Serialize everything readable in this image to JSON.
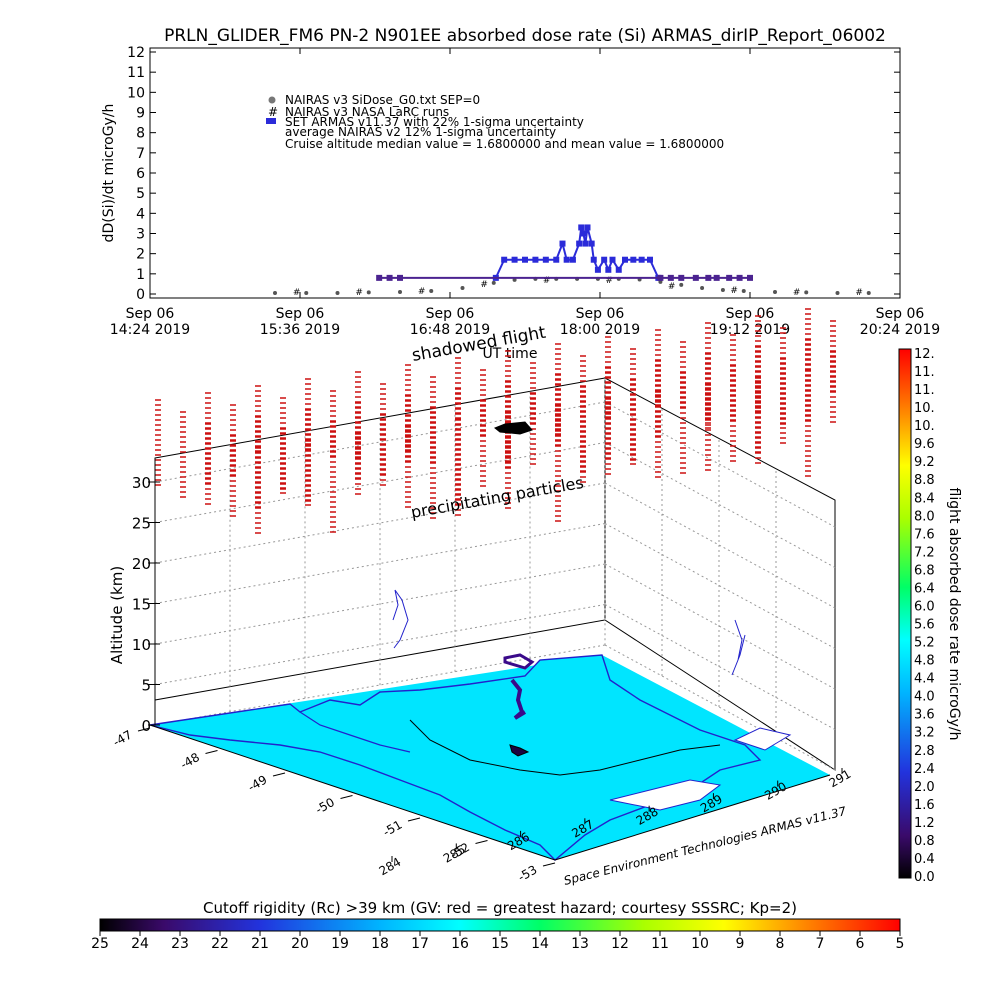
{
  "chart_data": [
    {
      "type": "scatter",
      "title": "PRLN_GLIDER_FM6 PN-2 N901EE absorbed dose rate (Si) ARMAS_dirIP_Report_06002",
      "ylabel": "dD(Si)/dt microGy/h",
      "xlabel": "UT time",
      "ylim": [
        0,
        12
      ],
      "yticks": [
        "0",
        "1",
        "2",
        "3",
        "4",
        "5",
        "6",
        "7",
        "8",
        "9",
        "10",
        "11",
        "12"
      ],
      "xticks": [
        {
          "t": 0,
          "line1": "Sep 06",
          "line2": "14:24 2019"
        },
        {
          "t": 72,
          "line1": "Sep 06",
          "line2": "15:36 2019"
        },
        {
          "t": 144,
          "line1": "Sep 06",
          "line2": "16:48 2019"
        },
        {
          "t": 216,
          "line1": "Sep 06",
          "line2": "18:00 2019"
        },
        {
          "t": 288,
          "line1": "Sep 06",
          "line2": "19:12 2019"
        },
        {
          "t": 360,
          "line1": "Sep 06",
          "line2": "20:24 2019"
        }
      ],
      "legend": {
        "placement": "top-left",
        "entries": [
          "NAIRAS v3 SiDose_G0.txt SEP=0",
          "NAIRAS v3 NASA LaRC runs",
          "SET ARMAS v11.37 with 22% 1-sigma uncertainty",
          "average NAIRAS v2 12% 1-sigma uncertainty",
          "Cruise altitude median value = 1.6800000 and mean value = 1.6800000"
        ]
      },
      "series": [
        {
          "name": "NAIRAS v3 SiDose_G0.txt SEP=0",
          "color": "#555555",
          "x": [
            60,
            75,
            90,
            105,
            120,
            135,
            150,
            165,
            175,
            185,
            195,
            205,
            215,
            225,
            235,
            245,
            255,
            265,
            275,
            285,
            300,
            315,
            330,
            345
          ],
          "y": [
            0.05,
            0.05,
            0.05,
            0.08,
            0.1,
            0.15,
            0.3,
            0.55,
            0.7,
            0.75,
            0.75,
            0.75,
            0.75,
            0.75,
            0.72,
            0.6,
            0.45,
            0.3,
            0.2,
            0.15,
            0.1,
            0.08,
            0.05,
            0.05
          ]
        },
        {
          "name": "NAIRAS v3 NASA LaRC runs",
          "color": "#000000",
          "x": [
            70,
            100,
            130,
            160,
            190,
            220,
            250,
            280,
            310,
            340
          ],
          "y": [
            0.1,
            0.1,
            0.15,
            0.5,
            0.7,
            0.7,
            0.4,
            0.2,
            0.1,
            0.1
          ]
        },
        {
          "name": "SET ARMAS v11.37 with 22% 1-sigma uncertainty",
          "color": "#2b2bd9",
          "x": [
            166,
            170,
            175,
            180,
            185,
            190,
            195,
            198,
            200,
            203,
            206,
            207,
            208,
            209,
            210,
            212,
            213,
            215,
            218,
            220,
            222,
            225,
            228,
            232,
            236,
            240,
            244
          ],
          "y": [
            0.8,
            1.7,
            1.7,
            1.7,
            1.7,
            1.7,
            1.7,
            2.5,
            1.7,
            1.7,
            2.5,
            3.3,
            3.0,
            2.5,
            3.3,
            2.5,
            1.7,
            1.2,
            1.7,
            1.2,
            1.7,
            1.2,
            1.7,
            1.7,
            1.7,
            1.7,
            0.8
          ]
        },
        {
          "name": "average NAIRAS v2 12% 1-sigma uncertainty",
          "color": "#4b2390",
          "x": [
            110,
            115,
            120,
            245,
            250,
            255,
            262,
            268,
            272,
            278,
            283,
            288
          ],
          "y": [
            0.8,
            0.8,
            0.8,
            0.8,
            0.8,
            0.8,
            0.8,
            0.8,
            0.8,
            0.8,
            0.8,
            0.8
          ]
        }
      ]
    },
    {
      "type": "scatter",
      "title": "",
      "zlabel": "Altitude (km)",
      "zticks": [
        "0",
        "5",
        "10",
        "15",
        "20",
        "25",
        "30"
      ],
      "lat_ticks": [
        "-47",
        "-48",
        "-49",
        "-50",
        "-51",
        "-52",
        "-53"
      ],
      "lon_ticks": [
        "284",
        "285",
        "286",
        "287",
        "288",
        "289",
        "290",
        "291"
      ],
      "annotations": [
        "shadowed flight",
        "precipitating particles"
      ],
      "credit": "Space Environment Technologies ARMAS v11.37",
      "flight_track": {
        "lon": [
          288.6,
          288.8,
          288.6,
          288.5,
          288.6,
          288.8,
          288.7
        ],
        "lat": [
          -49.6,
          -49.4,
          -49.8,
          -50.2,
          -49.8,
          -49.5,
          -49.6
        ],
        "alt_km": [
          0,
          8,
          10,
          12,
          10,
          8,
          0
        ]
      }
    }
  ],
  "colorbar_right": {
    "label": "flight absorbed dose rate microGy/h",
    "ticks": [
      "0.0",
      "0.4",
      "0.8",
      "1.2",
      "1.6",
      "2.0",
      "2.4",
      "2.8",
      "3.2",
      "3.6",
      "4.0",
      "4.4",
      "4.8",
      "5.2",
      "5.6",
      "6.0",
      "6.4",
      "6.8",
      "7.2",
      "7.6",
      "8.0",
      "8.4",
      "8.8",
      "9.2",
      "9.6",
      "10.",
      "10.",
      "11.",
      "11.",
      "12."
    ]
  },
  "colorbar_bottom": {
    "label": "Cutoff rigidity (Rc) >39 km (GV: red = greatest hazard; courtesy SSSRC; Kp=2)",
    "ticks": [
      "25",
      "24",
      "23",
      "22",
      "21",
      "20",
      "19",
      "18",
      "17",
      "16",
      "15",
      "14",
      "13",
      "12",
      "11",
      "10",
      "9",
      "8",
      "7",
      "6",
      "5"
    ]
  },
  "colors": {
    "sea": "#00e5ff",
    "coast": "#2222cc",
    "hazard_marks": "#cc1111"
  }
}
